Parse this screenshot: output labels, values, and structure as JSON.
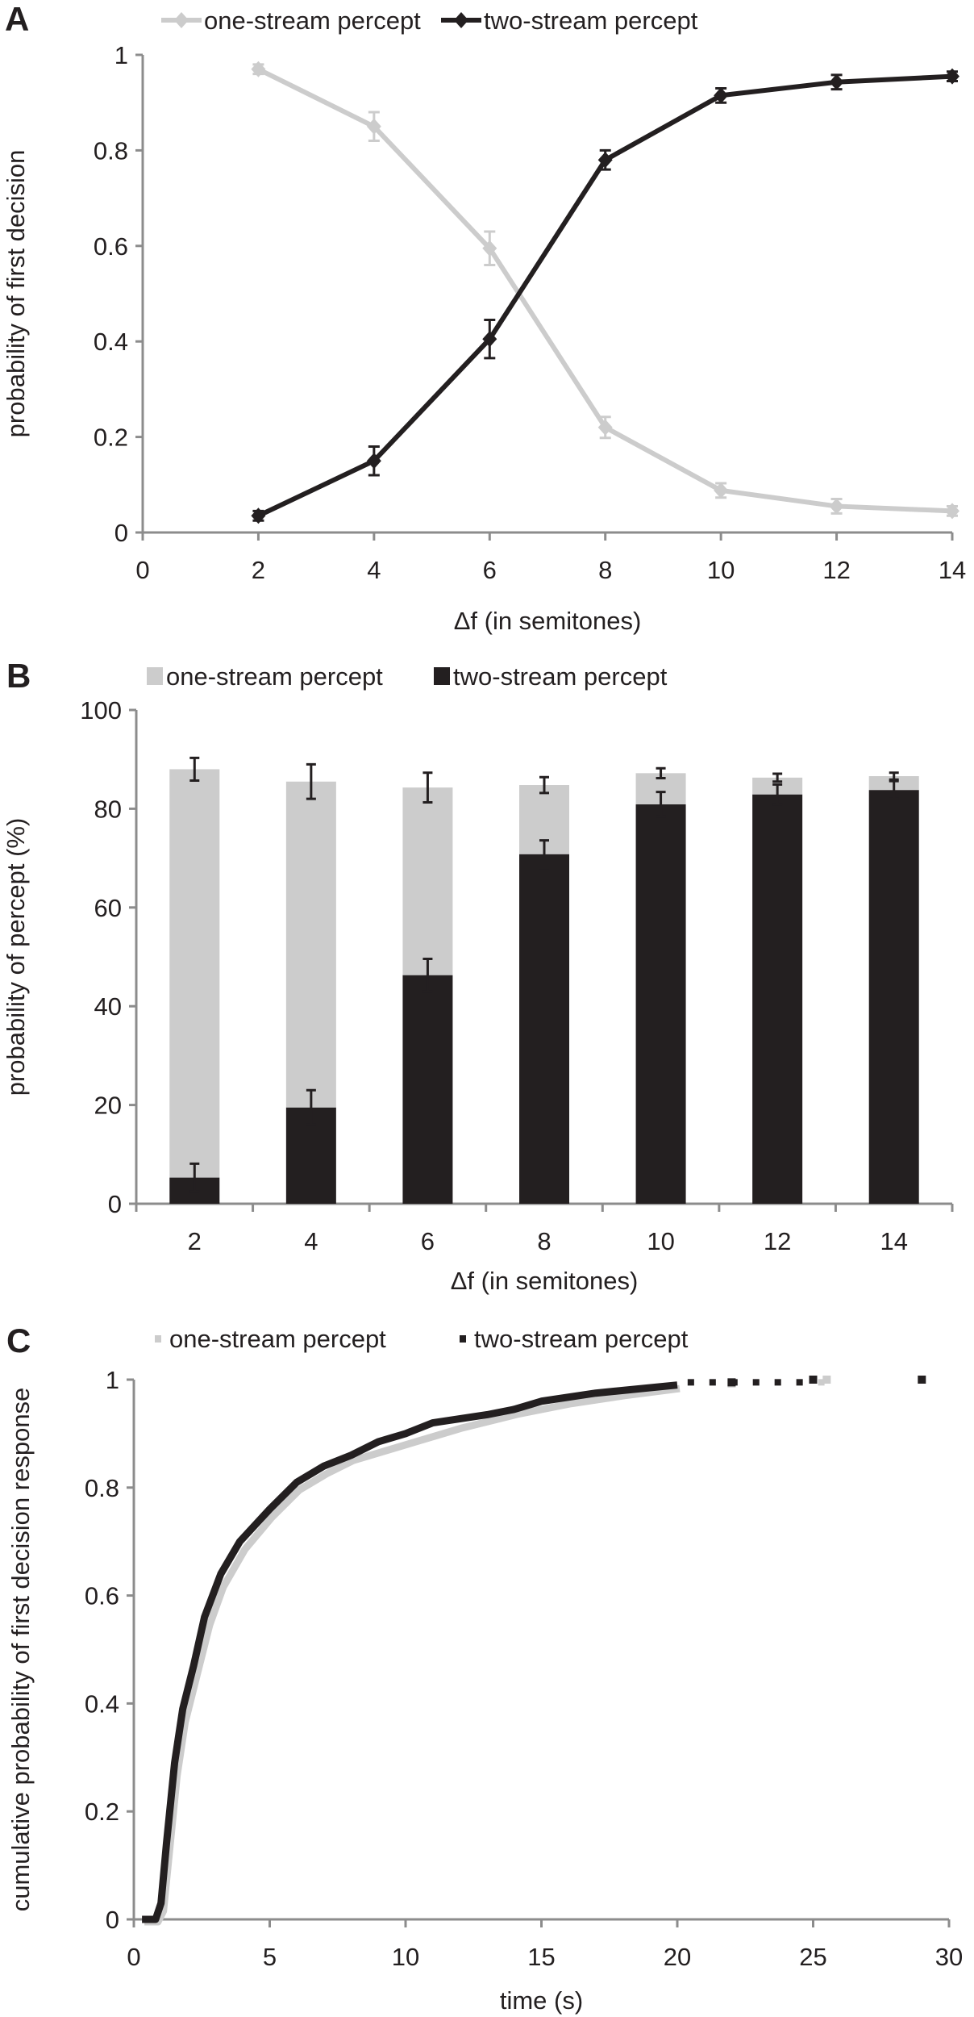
{
  "chart_data": [
    {
      "panel": "A",
      "type": "line",
      "xlabel": "Δf (in semitones)",
      "ylabel": "probability of first decision",
      "xlim": [
        0,
        14
      ],
      "ylim": [
        0,
        1
      ],
      "xticks": [
        "0",
        "2",
        "4",
        "6",
        "8",
        "10",
        "12",
        "14"
      ],
      "yticks": [
        "0",
        "0.2",
        "0.4",
        "0.6",
        "0.8",
        "1"
      ],
      "x": [
        2,
        4,
        6,
        8,
        10,
        12,
        14
      ],
      "legend_position": "top",
      "series": [
        {
          "name": "one-stream percept",
          "color": "#cccccc",
          "values": [
            0.97,
            0.85,
            0.595,
            0.22,
            0.088,
            0.055,
            0.045
          ],
          "errors": [
            0.01,
            0.03,
            0.035,
            0.022,
            0.015,
            0.015,
            0.01
          ]
        },
        {
          "name": "two-stream percept",
          "color": "#231f20",
          "values": [
            0.035,
            0.15,
            0.405,
            0.78,
            0.915,
            0.943,
            0.955
          ],
          "errors": [
            0.01,
            0.03,
            0.04,
            0.02,
            0.015,
            0.015,
            0.01
          ]
        }
      ]
    },
    {
      "panel": "B",
      "type": "bar",
      "stacked": true,
      "xlabel": "Δf (in semitones)",
      "ylabel": "probability of percept (%)",
      "ylim": [
        0,
        100
      ],
      "yticks": [
        "0",
        "20",
        "40",
        "60",
        "80",
        "100"
      ],
      "categories": [
        "2",
        "4",
        "6",
        "8",
        "10",
        "12",
        "14"
      ],
      "legend_position": "top",
      "series": [
        {
          "name": "two-stream percept",
          "color": "#231f20",
          "values": [
            5.3,
            19.5,
            46.3,
            70.8,
            80.9,
            82.9,
            83.8
          ],
          "errors": [
            2.8,
            3.5,
            3.3,
            2.8,
            2.5,
            2.0,
            1.8
          ]
        },
        {
          "name": "one-stream percept",
          "color": "#cccccc",
          "values": [
            82.7,
            66.0,
            38.0,
            14.0,
            6.3,
            3.4,
            2.8
          ],
          "errors": [
            2.3,
            3.5,
            3.0,
            1.6,
            1.0,
            0.8,
            0.7
          ]
        }
      ]
    },
    {
      "panel": "C",
      "type": "scatter",
      "xlabel": "time (s)",
      "ylabel": "cumulative probability of first decision response",
      "xlim": [
        0,
        30
      ],
      "ylim": [
        0,
        1
      ],
      "xticks": [
        "0",
        "5",
        "10",
        "15",
        "20",
        "25",
        "30"
      ],
      "yticks": [
        "0",
        "0.2",
        "0.4",
        "0.6",
        "0.8",
        "1"
      ],
      "legend_position": "top",
      "series": [
        {
          "name": "one-stream percept",
          "color": "#cccccc",
          "points": [
            [
              0.3,
              0
            ],
            [
              0.8,
              0
            ],
            [
              1.0,
              0.02
            ],
            [
              1.2,
              0.12
            ],
            [
              1.5,
              0.27
            ],
            [
              1.8,
              0.37
            ],
            [
              2.2,
              0.45
            ],
            [
              2.7,
              0.55
            ],
            [
              3.2,
              0.62
            ],
            [
              4,
              0.69
            ],
            [
              5,
              0.75
            ],
            [
              6,
              0.8
            ],
            [
              7,
              0.83
            ],
            [
              8,
              0.855
            ],
            [
              10,
              0.885
            ],
            [
              12,
              0.915
            ],
            [
              14,
              0.94
            ],
            [
              16,
              0.96
            ],
            [
              18,
              0.975
            ],
            [
              20,
              0.988
            ],
            [
              22,
              0.993
            ],
            [
              25.5,
              1
            ]
          ]
        },
        {
          "name": "two-stream percept",
          "color": "#231f20",
          "points": [
            [
              0.3,
              0
            ],
            [
              0.8,
              0
            ],
            [
              1.0,
              0.03
            ],
            [
              1.2,
              0.14
            ],
            [
              1.5,
              0.29
            ],
            [
              1.8,
              0.39
            ],
            [
              2.2,
              0.47
            ],
            [
              2.6,
              0.56
            ],
            [
              3.2,
              0.64
            ],
            [
              3.9,
              0.7
            ],
            [
              5,
              0.76
            ],
            [
              6,
              0.81
            ],
            [
              7,
              0.84
            ],
            [
              8,
              0.86
            ],
            [
              9,
              0.885
            ],
            [
              10,
              0.9
            ],
            [
              11,
              0.92
            ],
            [
              13,
              0.935
            ],
            [
              14,
              0.945
            ],
            [
              15,
              0.96
            ],
            [
              17,
              0.975
            ],
            [
              18,
              0.98
            ],
            [
              20,
              0.99
            ],
            [
              22,
              0.995
            ],
            [
              25,
              1
            ],
            [
              29,
              1
            ]
          ]
        }
      ]
    }
  ],
  "panel_labels": [
    "A",
    "B",
    "C"
  ]
}
